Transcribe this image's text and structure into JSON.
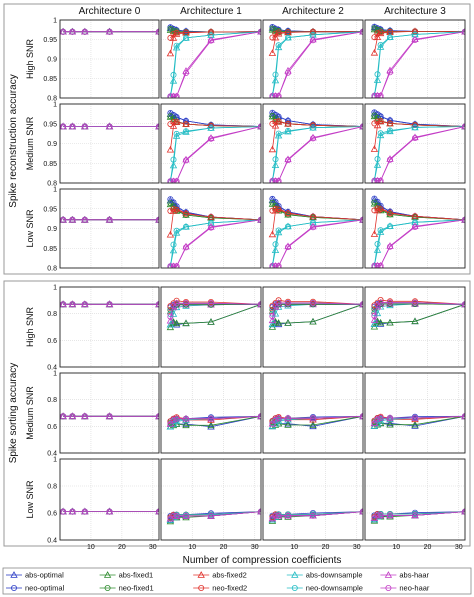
{
  "columns": [
    "Architecture 0",
    "Architecture 1",
    "Architecture 2",
    "Architecture 3"
  ],
  "row_labels": [
    "High SNR",
    "Medium SNR",
    "Low SNR"
  ],
  "groups": [
    "Spike reconstruction accuracy",
    "Spike sorting accuracy"
  ],
  "xlabel": "Number of compression coefficients",
  "legend": [
    {
      "name": "abs-optimal",
      "color": "#2d3fc7",
      "marker": "triangle"
    },
    {
      "name": "abs-fixed1",
      "color": "#2e8b2e",
      "marker": "triangle"
    },
    {
      "name": "abs-fixed2",
      "color": "#e0302a",
      "marker": "triangle"
    },
    {
      "name": "abs-downsample",
      "color": "#22bcc4",
      "marker": "triangle"
    },
    {
      "name": "abs-haar",
      "color": "#c33cc6",
      "marker": "triangle"
    },
    {
      "name": "neo-optimal",
      "color": "#2d3fc7",
      "marker": "circle"
    },
    {
      "name": "neo-fixed1",
      "color": "#2e8b2e",
      "marker": "circle"
    },
    {
      "name": "neo-fixed2",
      "color": "#e0302a",
      "marker": "circle"
    },
    {
      "name": "neo-downsample",
      "color": "#22bcc4",
      "marker": "circle"
    },
    {
      "name": "neo-haar",
      "color": "#c33cc6",
      "marker": "circle"
    }
  ],
  "chart_data": {
    "type": "line",
    "grid": true,
    "xlim": [
      0,
      32
    ],
    "xticks": [
      10,
      20,
      30
    ],
    "x_arch0": [
      1,
      4,
      8,
      16,
      32
    ],
    "x": [
      3,
      4,
      5,
      8,
      16,
      32
    ],
    "panels": {
      "reconstruction": {
        "ylim": [
          0.8,
          1.0
        ],
        "yticks": [
          "0.8",
          "0.85",
          "0.9",
          "0.95",
          "1"
        ],
        "baseline": [
          0.97,
          0.943,
          0.922
        ],
        "series": {
          "abs-optimal": [
            [
              0.98,
              0.977,
              0.975,
              0.972,
              0.97,
              0.97
            ],
            [
              0.975,
              0.972,
              0.968,
              0.958,
              0.948,
              0.943
            ],
            [
              0.972,
              0.965,
              0.955,
              0.942,
              0.93,
              0.922
            ]
          ],
          "abs-fixed1": [
            [
              0.975,
              0.972,
              0.97,
              0.97,
              0.97,
              0.97
            ],
            [
              0.968,
              0.962,
              0.955,
              0.95,
              0.946,
              0.943
            ],
            [
              0.962,
              0.955,
              0.945,
              0.935,
              0.928,
              0.922
            ]
          ],
          "abs-fixed2": [
            [
              0.915,
              0.955,
              0.965,
              0.968,
              0.97,
              0.97
            ],
            [
              0.885,
              0.945,
              0.955,
              0.95,
              0.946,
              0.943
            ],
            [
              0.885,
              0.945,
              0.95,
              0.94,
              0.93,
              0.922
            ]
          ],
          "abs-downsample": [
            [
              0.805,
              0.845,
              0.93,
              0.955,
              0.962,
              0.97
            ],
            [
              0.805,
              0.845,
              0.92,
              0.93,
              0.94,
              0.943
            ],
            [
              0.805,
              0.845,
              0.89,
              0.905,
              0.915,
              0.922
            ]
          ],
          "abs-haar": [
            [
              0.805,
              0.805,
              0.805,
              0.87,
              0.95,
              0.97
            ],
            [
              0.805,
              0.805,
              0.805,
              0.86,
              0.915,
              0.943
            ],
            [
              0.805,
              0.805,
              0.805,
              0.855,
              0.905,
              0.922
            ]
          ],
          "neo-optimal": [
            [
              0.982,
              0.978,
              0.975,
              0.972,
              0.97,
              0.97
            ],
            [
              0.978,
              0.973,
              0.968,
              0.958,
              0.948,
              0.943
            ],
            [
              0.975,
              0.967,
              0.957,
              0.942,
              0.93,
              0.922
            ]
          ],
          "neo-fixed1": [
            [
              0.978,
              0.974,
              0.972,
              0.97,
              0.97,
              0.97
            ],
            [
              0.97,
              0.964,
              0.957,
              0.95,
              0.946,
              0.943
            ],
            [
              0.965,
              0.957,
              0.947,
              0.935,
              0.928,
              0.922
            ]
          ],
          "neo-fixed2": [
            [
              0.955,
              0.965,
              0.968,
              0.969,
              0.97,
              0.97
            ],
            [
              0.95,
              0.955,
              0.956,
              0.95,
              0.946,
              0.943
            ],
            [
              0.945,
              0.95,
              0.948,
              0.938,
              0.93,
              0.922
            ]
          ],
          "neo-downsample": [
            [
              0.805,
              0.86,
              0.935,
              0.955,
              0.962,
              0.97
            ],
            [
              0.805,
              0.86,
              0.925,
              0.932,
              0.94,
              0.943
            ],
            [
              0.805,
              0.86,
              0.895,
              0.905,
              0.915,
              0.922
            ]
          ],
          "neo-haar": [
            [
              0.805,
              0.805,
              0.805,
              0.865,
              0.948,
              0.97
            ],
            [
              0.805,
              0.805,
              0.805,
              0.858,
              0.913,
              0.943
            ],
            [
              0.805,
              0.805,
              0.805,
              0.853,
              0.903,
              0.922
            ]
          ]
        }
      },
      "sorting": {
        "ylim": [
          0.4,
          1.0
        ],
        "yticks": [
          "0.4",
          "0.6",
          "0.8",
          "1"
        ],
        "baseline": [
          0.87,
          0.675,
          0.61
        ],
        "series": {
          "abs-optimal": [
            [
              0.72,
              0.73,
              0.72,
              0.73,
              0.74,
              0.87
            ],
            [
              0.6,
              0.62,
              0.62,
              0.62,
              0.6,
              0.675
            ],
            [
              0.55,
              0.58,
              0.57,
              0.58,
              0.58,
              0.61
            ]
          ],
          "abs-fixed1": [
            [
              0.7,
              0.74,
              0.73,
              0.73,
              0.74,
              0.87
            ],
            [
              0.6,
              0.61,
              0.62,
              0.61,
              0.61,
              0.675
            ],
            [
              0.54,
              0.57,
              0.57,
              0.57,
              0.58,
              0.61
            ]
          ],
          "abs-fixed2": [
            [
              0.82,
              0.86,
              0.88,
              0.88,
              0.88,
              0.87
            ],
            [
              0.62,
              0.64,
              0.66,
              0.65,
              0.65,
              0.675
            ],
            [
              0.56,
              0.58,
              0.58,
              0.58,
              0.58,
              0.61
            ]
          ],
          "abs-downsample": [
            [
              0.72,
              0.8,
              0.85,
              0.86,
              0.87,
              0.87
            ],
            [
              0.6,
              0.62,
              0.64,
              0.65,
              0.66,
              0.675
            ],
            [
              0.55,
              0.57,
              0.58,
              0.58,
              0.58,
              0.61
            ]
          ],
          "abs-haar": [
            [
              0.75,
              0.85,
              0.87,
              0.87,
              0.87,
              0.87
            ],
            [
              0.62,
              0.65,
              0.66,
              0.66,
              0.66,
              0.675
            ],
            [
              0.56,
              0.58,
              0.58,
              0.58,
              0.58,
              0.61
            ]
          ],
          "neo-optimal": [
            [
              0.85,
              0.87,
              0.87,
              0.87,
              0.87,
              0.87
            ],
            [
              0.64,
              0.66,
              0.66,
              0.66,
              0.67,
              0.675
            ],
            [
              0.58,
              0.59,
              0.59,
              0.59,
              0.6,
              0.61
            ]
          ],
          "neo-fixed1": [
            [
              0.83,
              0.86,
              0.87,
              0.87,
              0.87,
              0.87
            ],
            [
              0.63,
              0.65,
              0.66,
              0.66,
              0.66,
              0.675
            ],
            [
              0.57,
              0.58,
              0.59,
              0.59,
              0.59,
              0.61
            ]
          ],
          "neo-fixed2": [
            [
              0.86,
              0.88,
              0.9,
              0.89,
              0.89,
              0.87
            ],
            [
              0.64,
              0.66,
              0.67,
              0.66,
              0.66,
              0.675
            ],
            [
              0.57,
              0.59,
              0.59,
              0.59,
              0.59,
              0.61
            ]
          ],
          "neo-downsample": [
            [
              0.8,
              0.86,
              0.88,
              0.88,
              0.88,
              0.87
            ],
            [
              0.62,
              0.64,
              0.65,
              0.66,
              0.66,
              0.675
            ],
            [
              0.56,
              0.58,
              0.59,
              0.59,
              0.59,
              0.61
            ]
          ],
          "neo-haar": [
            [
              0.78,
              0.86,
              0.88,
              0.88,
              0.88,
              0.87
            ],
            [
              0.62,
              0.65,
              0.66,
              0.66,
              0.66,
              0.675
            ],
            [
              0.56,
              0.58,
              0.58,
              0.58,
              0.58,
              0.61
            ]
          ]
        }
      }
    }
  }
}
